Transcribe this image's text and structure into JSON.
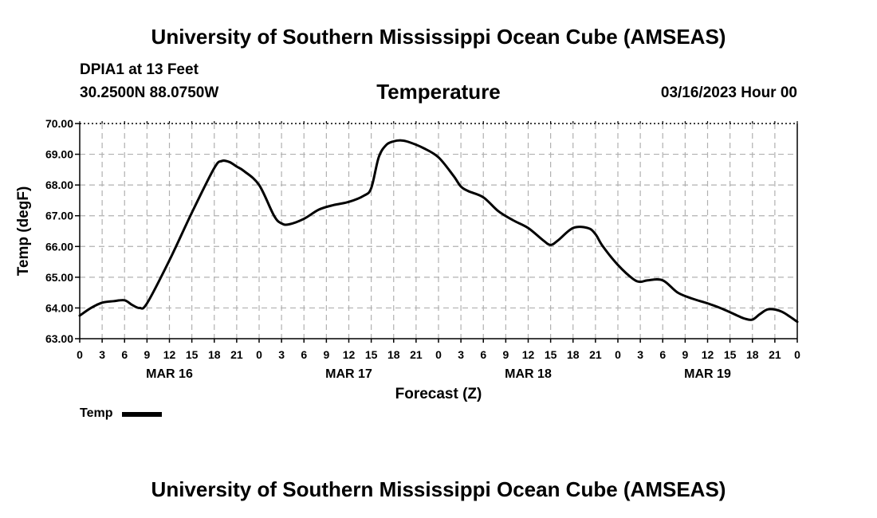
{
  "header": {
    "title": "University of Southern Mississippi Ocean Cube (AMSEAS)",
    "station": "DPIA1 at 13 Feet",
    "coordinates": "30.2500N  88.0750W",
    "chart_title": "Temperature",
    "datetime": "03/16/2023 Hour 00"
  },
  "footer": {
    "title": "University of Southern Mississippi Ocean Cube (AMSEAS)"
  },
  "legend": {
    "label": "Temp",
    "color": "#000000"
  },
  "chart_data": {
    "type": "line",
    "title": "Temperature",
    "xlabel": "Forecast (Z)",
    "ylabel": "Temp (degF)",
    "ylim": [
      63.0,
      70.0
    ],
    "xlim": [
      0,
      96
    ],
    "yticks": [
      "63.00",
      "64.00",
      "65.00",
      "66.00",
      "67.00",
      "68.00",
      "69.00",
      "70.00"
    ],
    "xtick_labels": [
      "0",
      "3",
      "6",
      "9",
      "12",
      "15",
      "18",
      "21",
      "0",
      "3",
      "6",
      "9",
      "12",
      "15",
      "18",
      "21",
      "0",
      "3",
      "6",
      "9",
      "12",
      "15",
      "18",
      "21",
      "0",
      "3",
      "6",
      "9",
      "12",
      "15",
      "18",
      "21",
      "0"
    ],
    "day_labels": [
      {
        "label": "MAR 16",
        "hour": 12
      },
      {
        "label": "MAR 17",
        "hour": 36
      },
      {
        "label": "MAR 18",
        "hour": 60
      },
      {
        "label": "MAR 19",
        "hour": 84
      }
    ],
    "grid": true,
    "series": [
      {
        "name": "Temp",
        "color": "#000000",
        "x": [
          0,
          1.5,
          3,
          4.5,
          6,
          7,
          8,
          9,
          12,
          15,
          18,
          19,
          20,
          21,
          22,
          24,
          26,
          27,
          28,
          30,
          32,
          34,
          36,
          38,
          39,
          40,
          41,
          42,
          43,
          44,
          46,
          48,
          50,
          51,
          52,
          54,
          56,
          58,
          60,
          62,
          63,
          64,
          66,
          68,
          69,
          70,
          72,
          74,
          75,
          76,
          78,
          80,
          82,
          84,
          86,
          88,
          89,
          90,
          91,
          92,
          93,
          94,
          95,
          96
        ],
        "values": [
          63.75,
          64.0,
          64.17,
          64.22,
          64.25,
          64.1,
          64.0,
          64.15,
          65.55,
          67.1,
          68.55,
          68.78,
          68.75,
          68.6,
          68.45,
          68.0,
          67.0,
          66.75,
          66.72,
          66.9,
          67.2,
          67.35,
          67.45,
          67.65,
          67.9,
          68.9,
          69.3,
          69.42,
          69.45,
          69.4,
          69.2,
          68.9,
          68.3,
          67.95,
          67.8,
          67.6,
          67.15,
          66.85,
          66.6,
          66.2,
          66.05,
          66.2,
          66.6,
          66.6,
          66.4,
          66.0,
          65.4,
          64.95,
          64.85,
          64.9,
          64.9,
          64.5,
          64.3,
          64.15,
          63.97,
          63.75,
          63.65,
          63.62,
          63.8,
          63.95,
          63.95,
          63.87,
          63.72,
          63.55
        ]
      }
    ]
  }
}
